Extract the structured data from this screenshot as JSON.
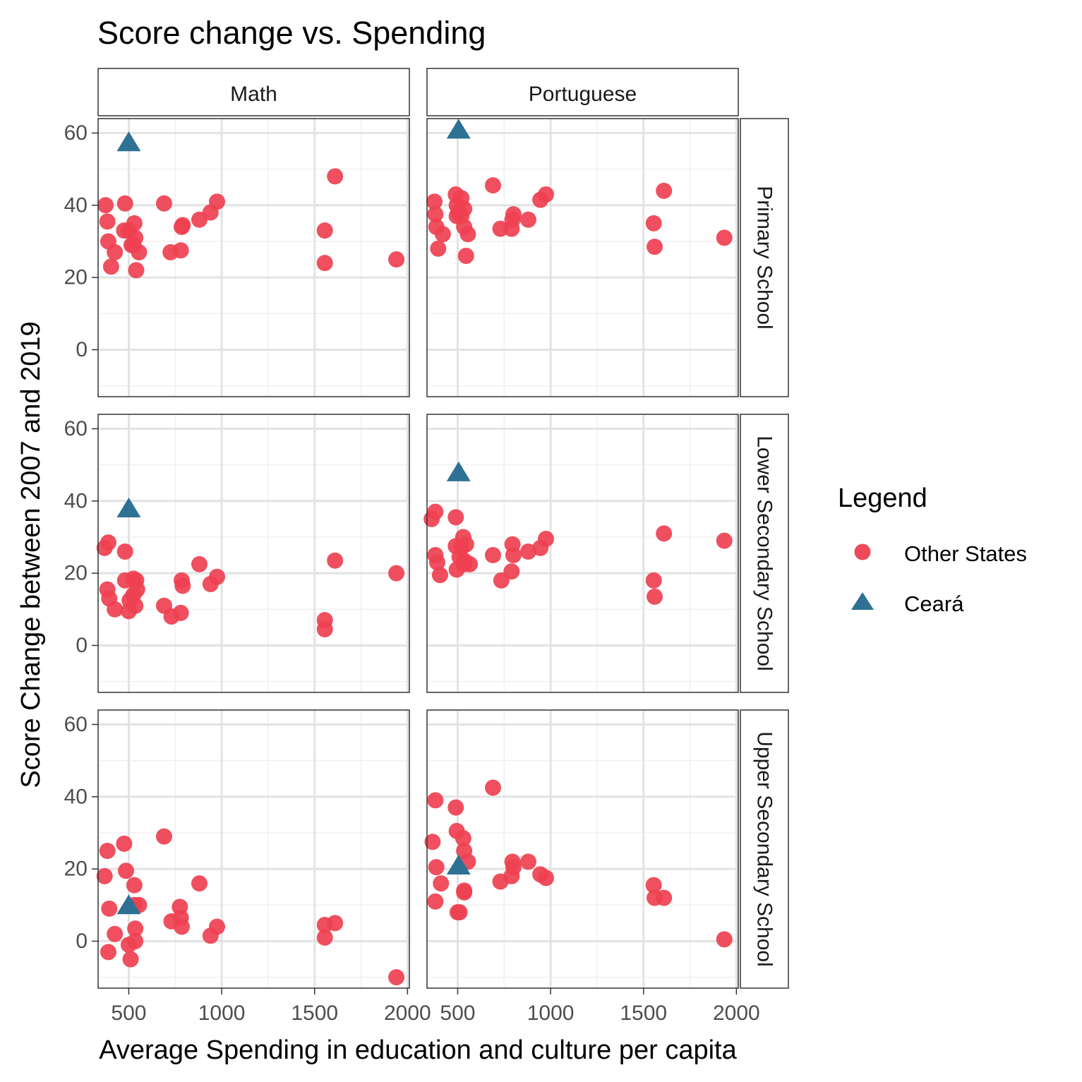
{
  "chart_data": {
    "type": "scatter",
    "title": "Score change vs. Spending",
    "xlabel": "Average Spending in education and culture per capita",
    "ylabel": "Score Change between 2007 and 2019",
    "xlim": [
      335,
      2010
    ],
    "ylim": [
      -13,
      64
    ],
    "x_ticks": [
      "500",
      "1000",
      "1500",
      "2000"
    ],
    "y_ticks": [
      "0",
      "20",
      "40",
      "60"
    ],
    "grid": true,
    "columns": [
      "Math",
      "Portuguese"
    ],
    "rows": [
      "Primary School",
      "Lower Secondary School",
      "Upper Secondary School"
    ],
    "legend": {
      "title": "Legend",
      "position": "right",
      "entries": [
        {
          "label": "Other States",
          "shape": "circle",
          "color": "#ee4050"
        },
        {
          "label": "Ceará",
          "shape": "triangle",
          "color": "#2e7194"
        }
      ]
    },
    "panels": [
      {
        "column": "Math",
        "row": "Primary School",
        "others": [
          [
            375,
            40
          ],
          [
            385,
            35.5
          ],
          [
            390,
            30
          ],
          [
            405,
            23
          ],
          [
            425,
            27
          ],
          [
            480,
            40.5
          ],
          [
            475,
            33
          ],
          [
            500,
            33
          ],
          [
            515,
            29
          ],
          [
            525,
            29
          ],
          [
            530,
            35
          ],
          [
            535,
            31
          ],
          [
            540,
            22
          ],
          [
            555,
            27
          ],
          [
            690,
            40.5
          ],
          [
            725,
            27
          ],
          [
            780,
            27.5
          ],
          [
            785,
            34
          ],
          [
            790,
            34.5
          ],
          [
            880,
            36
          ],
          [
            940,
            38
          ],
          [
            975,
            41
          ],
          [
            1555,
            33
          ],
          [
            1555,
            24
          ],
          [
            1610,
            48
          ],
          [
            1940,
            25
          ]
        ],
        "ceara": [
          500,
          57.5
        ]
      },
      {
        "column": "Portuguese",
        "row": "Primary School",
        "others": [
          [
            375,
            41
          ],
          [
            380,
            37.5
          ],
          [
            385,
            34
          ],
          [
            395,
            28
          ],
          [
            420,
            32
          ],
          [
            490,
            43
          ],
          [
            495,
            40
          ],
          [
            495,
            37
          ],
          [
            505,
            38
          ],
          [
            520,
            42
          ],
          [
            520,
            37
          ],
          [
            535,
            39
          ],
          [
            535,
            34
          ],
          [
            545,
            26
          ],
          [
            555,
            32
          ],
          [
            690,
            45.5
          ],
          [
            730,
            33.5
          ],
          [
            790,
            33.5
          ],
          [
            795,
            36
          ],
          [
            800,
            37.5
          ],
          [
            880,
            36
          ],
          [
            945,
            41.5
          ],
          [
            975,
            43
          ],
          [
            1555,
            35
          ],
          [
            1560,
            28.5
          ],
          [
            1610,
            44
          ],
          [
            1935,
            31
          ]
        ],
        "ceara": [
          505,
          61
        ]
      },
      {
        "column": "Math",
        "row": "Lower Secondary School",
        "others": [
          [
            370,
            27
          ],
          [
            390,
            28.5
          ],
          [
            385,
            15.5
          ],
          [
            395,
            13
          ],
          [
            425,
            10
          ],
          [
            480,
            26
          ],
          [
            480,
            18
          ],
          [
            500,
            9.5
          ],
          [
            505,
            12.5
          ],
          [
            525,
            18.5
          ],
          [
            525,
            14
          ],
          [
            535,
            11
          ],
          [
            540,
            18
          ],
          [
            545,
            15.5
          ],
          [
            690,
            11
          ],
          [
            730,
            8
          ],
          [
            780,
            9
          ],
          [
            785,
            18
          ],
          [
            790,
            16.5
          ],
          [
            880,
            22.5
          ],
          [
            940,
            17
          ],
          [
            975,
            19
          ],
          [
            1555,
            7
          ],
          [
            1555,
            4.5
          ],
          [
            1610,
            23.5
          ],
          [
            1940,
            20
          ]
        ],
        "ceara": [
          500,
          38
        ]
      },
      {
        "column": "Portuguese",
        "row": "Lower Secondary School",
        "others": [
          [
            360,
            35
          ],
          [
            380,
            37
          ],
          [
            380,
            25
          ],
          [
            390,
            23
          ],
          [
            405,
            19.5
          ],
          [
            490,
            35.5
          ],
          [
            490,
            27.5
          ],
          [
            495,
            21
          ],
          [
            510,
            24.5
          ],
          [
            520,
            27
          ],
          [
            530,
            30
          ],
          [
            535,
            23.5
          ],
          [
            535,
            22.5
          ],
          [
            545,
            28
          ],
          [
            565,
            22.5
          ],
          [
            690,
            25
          ],
          [
            735,
            18
          ],
          [
            790,
            20.5
          ],
          [
            795,
            28
          ],
          [
            800,
            25
          ],
          [
            880,
            26
          ],
          [
            945,
            27
          ],
          [
            975,
            29.5
          ],
          [
            1555,
            18
          ],
          [
            1560,
            13.5
          ],
          [
            1610,
            31
          ],
          [
            1935,
            29
          ]
        ],
        "ceara": [
          505,
          48
        ]
      },
      {
        "column": "Math",
        "row": "Upper Secondary School",
        "others": [
          [
            370,
            18
          ],
          [
            385,
            25
          ],
          [
            390,
            -3
          ],
          [
            395,
            9
          ],
          [
            425,
            2
          ],
          [
            475,
            27
          ],
          [
            485,
            19.5
          ],
          [
            500,
            -1
          ],
          [
            510,
            -5
          ],
          [
            530,
            15.5
          ],
          [
            530,
            10
          ],
          [
            535,
            3.5
          ],
          [
            535,
            0
          ],
          [
            555,
            10
          ],
          [
            690,
            29
          ],
          [
            730,
            5.5
          ],
          [
            775,
            9.5
          ],
          [
            780,
            6.5
          ],
          [
            785,
            4
          ],
          [
            880,
            16
          ],
          [
            940,
            1.5
          ],
          [
            975,
            4
          ],
          [
            1555,
            4.5
          ],
          [
            1555,
            1
          ],
          [
            1610,
            5
          ],
          [
            1940,
            -10
          ]
        ],
        "ceara": [
          500,
          10
        ]
      },
      {
        "column": "Portuguese",
        "row": "Upper Secondary School",
        "others": [
          [
            365,
            27.5
          ],
          [
            380,
            39
          ],
          [
            380,
            11
          ],
          [
            385,
            20.5
          ],
          [
            410,
            16
          ],
          [
            490,
            37
          ],
          [
            495,
            30.5
          ],
          [
            500,
            8
          ],
          [
            510,
            8
          ],
          [
            530,
            28.5
          ],
          [
            535,
            25
          ],
          [
            535,
            14
          ],
          [
            535,
            13.5
          ],
          [
            555,
            22
          ],
          [
            690,
            42.5
          ],
          [
            730,
            16.5
          ],
          [
            790,
            18
          ],
          [
            795,
            22
          ],
          [
            800,
            20.5
          ],
          [
            880,
            22
          ],
          [
            945,
            18.5
          ],
          [
            975,
            17.5
          ],
          [
            1555,
            15.5
          ],
          [
            1560,
            12
          ],
          [
            1610,
            12
          ],
          [
            1935,
            0.5
          ]
        ],
        "ceara": [
          505,
          21
        ]
      }
    ]
  }
}
